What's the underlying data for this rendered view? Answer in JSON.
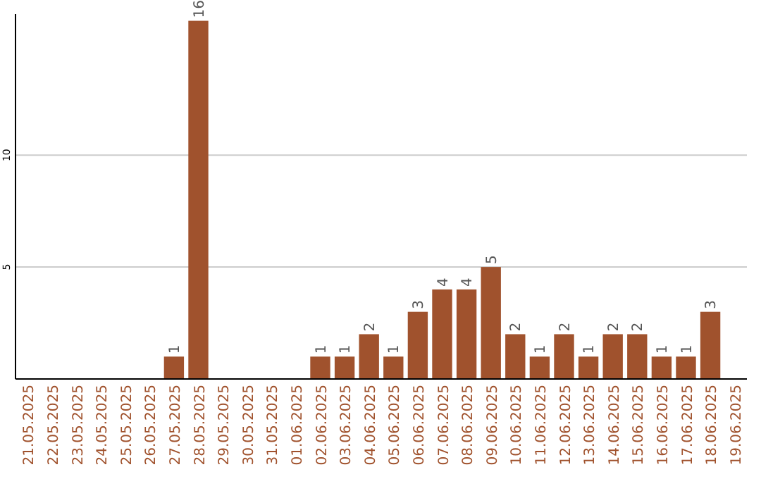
{
  "chart_data": {
    "type": "bar",
    "categories": [
      "21.05.2025",
      "22.05.2025",
      "23.05.2025",
      "24.05.2025",
      "25.05.2025",
      "26.05.2025",
      "27.05.2025",
      "28.05.2025",
      "29.05.2025",
      "30.05.2025",
      "31.05.2025",
      "01.06.2025",
      "02.06.2025",
      "03.06.2025",
      "04.06.2025",
      "05.06.2025",
      "06.06.2025",
      "07.06.2025",
      "08.06.2025",
      "09.06.2025",
      "10.06.2025",
      "11.06.2025",
      "12.06.2025",
      "13.06.2025",
      "14.06.2025",
      "15.06.2025",
      "16.06.2025",
      "17.06.2025",
      "18.06.2025",
      "19.06.2025"
    ],
    "values": [
      0,
      0,
      0,
      0,
      0,
      0,
      1,
      16,
      0,
      0,
      0,
      0,
      1,
      1,
      2,
      1,
      3,
      4,
      4,
      5,
      2,
      1,
      2,
      1,
      2,
      2,
      1,
      1,
      3,
      0
    ],
    "value_labels": [
      null,
      null,
      null,
      null,
      null,
      null,
      "1",
      "16",
      null,
      null,
      null,
      null,
      "1",
      "1",
      "2",
      "1",
      "3",
      "4",
      "4",
      "5",
      "2",
      "1",
      "2",
      "1",
      "2",
      "2",
      "1",
      "1",
      "3",
      null
    ],
    "color": "#a0522d",
    "ylim": [
      0,
      16.3
    ],
    "yticks": [
      5,
      10
    ],
    "grid": "y"
  }
}
